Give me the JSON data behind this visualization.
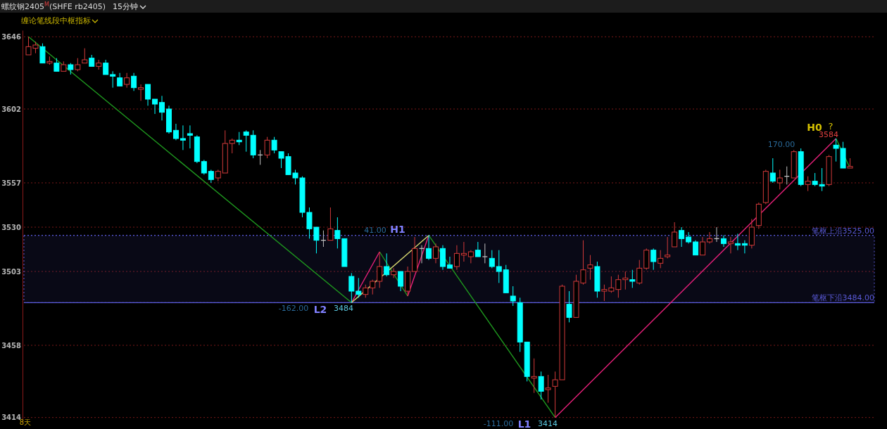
{
  "chart_data": {
    "type": "candlestick",
    "title": "螺纹钢2405$^{M}$(SHFE rb2405)",
    "subtitle": "缠论笔线段中枢指标",
    "annotations": [
      "15分钟",
      "41.00",
      "H1",
      "-162.00",
      "L2",
      "3484",
      "-111.00",
      "L1",
      "3414",
      "170.00",
      "H0",
      "?",
      "3584",
      "8天"
    ],
    "categories": [
      null,
      null,
      null,
      null,
      null,
      null,
      null,
      null,
      null,
      null,
      null,
      null,
      null,
      null,
      null,
      null,
      null,
      null,
      null,
      null,
      null,
      null,
      null,
      null,
      null,
      null,
      null,
      null,
      null,
      null,
      null,
      null,
      null,
      null,
      null,
      null,
      null,
      null,
      null,
      null,
      null,
      null,
      null,
      null,
      null,
      null,
      null,
      null,
      null,
      null,
      null,
      null,
      null,
      null,
      null,
      null,
      null,
      null,
      null,
      null,
      null,
      null,
      null,
      null,
      null,
      null,
      null,
      null,
      null,
      null,
      null,
      null,
      null,
      null,
      null,
      null,
      null,
      null,
      null,
      null,
      null,
      null,
      null,
      null,
      null,
      null,
      null,
      null,
      null,
      null,
      null,
      null,
      null,
      null,
      null,
      null,
      null,
      null,
      null,
      null,
      null,
      null,
      null,
      null,
      null,
      null,
      null,
      null,
      null,
      null,
      null,
      null,
      null,
      null,
      null,
      null,
      null,
      null
    ],
    "ohlc": [
      [
        3635,
        3646,
        3635,
        3640
      ],
      [
        3639,
        3643,
        3636,
        3641
      ],
      [
        3640,
        3642,
        3630,
        3630
      ],
      [
        3630,
        3634,
        3629,
        3631
      ],
      [
        3630,
        3633,
        3625,
        3625
      ],
      [
        3625,
        3631,
        3625,
        3629
      ],
      [
        3629,
        3630,
        3623,
        3626
      ],
      [
        3626,
        3633,
        3625,
        3629
      ],
      [
        3630,
        3639,
        3630,
        3632
      ],
      [
        3633,
        3635,
        3628,
        3628
      ],
      [
        3628,
        3632,
        3626,
        3630
      ],
      [
        3630,
        3632,
        3623,
        3623
      ],
      [
        3623,
        3625,
        3615,
        3622
      ],
      [
        3621,
        3624,
        3616,
        3616
      ],
      [
        3617,
        3624,
        3615,
        3621
      ],
      [
        3622,
        3624,
        3613,
        3615
      ],
      [
        3614,
        3617,
        3607,
        3615
      ],
      [
        3617,
        3617,
        3604,
        3608
      ],
      [
        3608,
        3608,
        3599,
        3605
      ],
      [
        3606,
        3610,
        3595,
        3600
      ],
      [
        3602,
        3604,
        3587,
        3588
      ],
      [
        3589,
        3593,
        3583,
        3584
      ],
      [
        3584,
        3592,
        3577,
        3583
      ],
      [
        3587,
        3592,
        3578,
        3586
      ],
      [
        3585,
        3586,
        3569,
        3570
      ],
      [
        3570,
        3571,
        3562,
        3563
      ],
      [
        3564,
        3565,
        3557,
        3559
      ],
      [
        3560,
        3565,
        3558,
        3564
      ],
      [
        3563,
        3589,
        3563,
        3581
      ],
      [
        3581,
        3584,
        3575,
        3583
      ],
      [
        3583,
        3588,
        3580,
        3582
      ],
      [
        3588,
        3589,
        3576,
        3586
      ],
      [
        3586,
        3589,
        3572,
        3574
      ],
      [
        3574,
        3577,
        3568,
        3574
      ],
      [
        3574,
        3585,
        3572,
        3583
      ],
      [
        3583,
        3585,
        3575,
        3577
      ],
      [
        3576,
        3576,
        3566,
        3572
      ],
      [
        3573,
        3575,
        3562,
        3562
      ],
      [
        3563,
        3565,
        3556,
        3560
      ],
      [
        3560,
        3561,
        3536,
        3539
      ],
      [
        3539,
        3542,
        3523,
        3529
      ],
      [
        3530,
        3530,
        3514,
        3522
      ],
      [
        3522,
        3528,
        3518,
        3522
      ],
      [
        3522,
        3542,
        3522,
        3529
      ],
      [
        3528,
        3536,
        3517,
        3523
      ],
      [
        3523,
        3523,
        3506,
        3506
      ],
      [
        3500,
        3502,
        3484,
        3491
      ],
      [
        3491,
        3499,
        3487,
        3489
      ],
      [
        3489,
        3495,
        3487,
        3493
      ],
      [
        3493,
        3498,
        3489,
        3497
      ],
      [
        3497,
        3515,
        3493,
        3506
      ],
      [
        3506,
        3514,
        3500,
        3501
      ],
      [
        3501,
        3505,
        3499,
        3503
      ],
      [
        3503,
        3503,
        3491,
        3494
      ],
      [
        3491,
        3506,
        3488,
        3503
      ],
      [
        3503,
        3524,
        3503,
        3517
      ],
      [
        3517,
        3519,
        3508,
        3517
      ],
      [
        3517,
        3525,
        3510,
        3511
      ],
      [
        3511,
        3520,
        3508,
        3518
      ],
      [
        3517,
        3519,
        3504,
        3506
      ],
      [
        3507,
        3512,
        3505,
        3505
      ],
      [
        3506,
        3519,
        3504,
        3514
      ],
      [
        3513,
        3521,
        3509,
        3514
      ],
      [
        3512,
        3516,
        3508,
        3515
      ],
      [
        3516,
        3521,
        3512,
        3512
      ],
      [
        3512,
        3520,
        3508,
        3512
      ],
      [
        3511,
        3516,
        3505,
        3506
      ],
      [
        3506,
        3516,
        3496,
        3503
      ],
      [
        3504,
        3507,
        3490,
        3490
      ],
      [
        3488,
        3494,
        3482,
        3485
      ],
      [
        3484,
        3487,
        3454,
        3460
      ],
      [
        3460,
        3460,
        3436,
        3439
      ],
      [
        3438,
        3450,
        3429,
        3439
      ],
      [
        3439,
        3442,
        3425,
        3430
      ],
      [
        3431,
        3440,
        3423,
        3432
      ],
      [
        3433,
        3442,
        3414,
        3437
      ],
      [
        3437,
        3495,
        3437,
        3494
      ],
      [
        3483,
        3491,
        3472,
        3475
      ],
      [
        3475,
        3501,
        3475,
        3497
      ],
      [
        3496,
        3522,
        3495,
        3504
      ],
      [
        3505,
        3513,
        3498,
        3507
      ],
      [
        3506,
        3509,
        3487,
        3491
      ],
      [
        3491,
        3495,
        3485,
        3492
      ],
      [
        3491,
        3500,
        3490,
        3493
      ],
      [
        3492,
        3501,
        3487,
        3498
      ],
      [
        3498,
        3503,
        3492,
        3499
      ],
      [
        3498,
        3504,
        3493,
        3497
      ],
      [
        3496,
        3510,
        3495,
        3505
      ],
      [
        3505,
        3517,
        3504,
        3516
      ],
      [
        3516,
        3517,
        3504,
        3509
      ],
      [
        3508,
        3516,
        3505,
        3511
      ],
      [
        3512,
        3524,
        3511,
        3513
      ],
      [
        3518,
        3533,
        3518,
        3527
      ],
      [
        3528,
        3530,
        3518,
        3523
      ],
      [
        3524,
        3527,
        3520,
        3521
      ],
      [
        3521,
        3522,
        3513,
        3513
      ],
      [
        3513,
        3524,
        3513,
        3521
      ],
      [
        3521,
        3527,
        3520,
        3523
      ],
      [
        3523,
        3530,
        3521,
        3523
      ],
      [
        3523,
        3525,
        3518,
        3520
      ],
      [
        3520,
        3524,
        3514,
        3521
      ],
      [
        3520,
        3526,
        3516,
        3519
      ],
      [
        3520,
        3522,
        3514,
        3519
      ],
      [
        3519,
        3535,
        3517,
        3530
      ],
      [
        3531,
        3545,
        3529,
        3544
      ],
      [
        3545,
        3565,
        3544,
        3564
      ],
      [
        3563,
        3572,
        3557,
        3558
      ],
      [
        3557,
        3565,
        3553,
        3560
      ],
      [
        3561,
        3567,
        3556,
        3561
      ],
      [
        3560,
        3577,
        3560,
        3576
      ],
      [
        3576,
        3578,
        3555,
        3556
      ],
      [
        3556,
        3561,
        3552,
        3558
      ],
      [
        3558,
        3563,
        3555,
        3556
      ],
      [
        3556,
        3566,
        3552,
        3555
      ],
      [
        3556,
        3574,
        3555,
        3573
      ],
      [
        3580,
        3584,
        3570,
        3578
      ],
      [
        3578,
        3582,
        3566,
        3566
      ],
      [
        3566,
        3572,
        3566,
        3567
      ]
    ],
    "colors": [
      "#d23a3a",
      "#d23a3a",
      "#00ffff",
      "#d23a3a",
      "#00ffff",
      "#d23a3a",
      "#00ffff",
      "#d23a3a",
      "#d23a3a",
      "#00ffff",
      "#d23a3a",
      "#00ffff",
      "#00ffff",
      "#00ffff",
      "#d23a3a",
      "#00ffff",
      "#d23a3a",
      "#00ffff",
      "#00ffff",
      "#00ffff",
      "#00ffff",
      "#00ffff",
      "#00ffff",
      "#00ffff",
      "#00ffff",
      "#00ffff",
      "#00ffff",
      "#d23a3a",
      "#d23a3a",
      "#d23a3a",
      "#00ffff",
      "#00ffff",
      "#00ffff",
      "#c0c0c0",
      "#d23a3a",
      "#00ffff",
      "#00ffff",
      "#00ffff",
      "#00ffff",
      "#00ffff",
      "#00ffff",
      "#00ffff",
      "#c0c0c0",
      "#d23a3a",
      "#00ffff",
      "#00ffff",
      "#00ffff",
      "#00ffff",
      "#d23a3a",
      "#d23a3a",
      "#d23a3a",
      "#00ffff",
      "#d23a3a",
      "#00ffff",
      "#d23a3a",
      "#d23a3a",
      "#c0c0c0",
      "#00ffff",
      "#d23a3a",
      "#00ffff",
      "#00ffff",
      "#d23a3a",
      "#d23a3a",
      "#d23a3a",
      "#00ffff",
      "#c0c0c0",
      "#00ffff",
      "#00ffff",
      "#00ffff",
      "#00ffff",
      "#00ffff",
      "#00ffff",
      "#d23a3a",
      "#00ffff",
      "#d23a3a",
      "#d23a3a",
      "#d23a3a",
      "#00ffff",
      "#d23a3a",
      "#d23a3a",
      "#d23a3a",
      "#00ffff",
      "#d23a3a",
      "#d23a3a",
      "#d23a3a",
      "#d23a3a",
      "#00ffff",
      "#d23a3a",
      "#d23a3a",
      "#00ffff",
      "#d23a3a",
      "#d23a3a",
      "#d23a3a",
      "#00ffff",
      "#00ffff",
      "#00ffff",
      "#d23a3a",
      "#d23a3a",
      "#c0c0c0",
      "#00ffff",
      "#d23a3a",
      "#00ffff",
      "#00ffff",
      "#d23a3a",
      "#d23a3a",
      "#d23a3a",
      "#00ffff",
      "#d23a3a",
      "#c0c0c0",
      "#d23a3a",
      "#00ffff",
      "#d23a3a",
      "#00ffff",
      "#00ffff",
      "#d23a3a",
      "#00ffff",
      "#00ffff",
      "#d23a3a"
    ],
    "series": [
      {
        "type": "line",
        "color": "#1f9a1f",
        "values": [
          3646,
          null,
          null,
          null,
          null,
          null,
          null,
          null,
          null,
          null,
          null,
          null,
          null,
          null,
          null,
          null,
          null,
          null,
          null,
          null,
          null,
          null,
          null,
          null,
          null,
          null,
          null,
          null,
          null,
          null,
          null,
          null,
          null,
          null,
          null,
          null,
          null,
          null,
          null,
          null,
          null,
          null,
          null,
          null,
          null,
          null,
          3484,
          null,
          null,
          null,
          null,
          null,
          null,
          null,
          null,
          null,
          null,
          null,
          null,
          null,
          null,
          null,
          null,
          null,
          null,
          null,
          null,
          null,
          null,
          null,
          null,
          null,
          null,
          null,
          null,
          null,
          null,
          null,
          null,
          null,
          null,
          null,
          null,
          null,
          null,
          null,
          null,
          null,
          null,
          null,
          null,
          null,
          null,
          null,
          null,
          null,
          null,
          null,
          null,
          null,
          null,
          null,
          null,
          null,
          null,
          null,
          null,
          null,
          null,
          null,
          null,
          null,
          null,
          null,
          null,
          null,
          null,
          null
        ]
      },
      {
        "type": "line",
        "color": "#1f9a1f",
        "values": [
          null,
          null,
          null,
          null,
          null,
          null,
          null,
          null,
          null,
          null,
          null,
          null,
          null,
          null,
          null,
          null,
          null,
          null,
          null,
          null,
          null,
          null,
          null,
          null,
          null,
          null,
          null,
          null,
          null,
          null,
          null,
          null,
          null,
          null,
          null,
          null,
          null,
          null,
          null,
          null,
          null,
          null,
          null,
          null,
          null,
          null,
          null,
          null,
          null,
          null,
          3515,
          null,
          null,
          null,
          3488,
          null,
          null,
          null,
          null,
          null,
          null,
          null,
          null,
          null,
          null,
          null,
          null,
          null,
          null,
          null,
          null,
          null,
          null,
          null,
          null,
          null,
          null,
          null,
          null,
          null,
          null,
          null,
          null,
          null,
          null,
          null,
          null,
          null,
          null,
          null,
          null,
          null,
          null,
          null,
          null,
          null,
          null,
          null,
          null,
          null,
          null,
          null,
          null,
          null,
          null,
          null,
          null,
          null,
          null,
          null,
          null,
          null,
          null,
          null,
          null,
          null,
          null,
          null
        ]
      },
      {
        "type": "line",
        "color": "#1f9a1f",
        "values": [
          null,
          null,
          null,
          null,
          null,
          null,
          null,
          null,
          null,
          null,
          null,
          null,
          null,
          null,
          null,
          null,
          null,
          null,
          null,
          null,
          null,
          null,
          null,
          null,
          null,
          null,
          null,
          null,
          null,
          null,
          null,
          null,
          null,
          null,
          null,
          null,
          null,
          null,
          null,
          null,
          null,
          null,
          null,
          null,
          null,
          null,
          null,
          null,
          null,
          null,
          null,
          null,
          null,
          null,
          null,
          null,
          null,
          3525,
          null,
          null,
          null,
          null,
          null,
          null,
          null,
          null,
          null,
          null,
          null,
          null,
          null,
          null,
          null,
          null,
          null,
          3414,
          null,
          null,
          null,
          null,
          null,
          null,
          null,
          null,
          null,
          null,
          null,
          null,
          null,
          null,
          null,
          null,
          null,
          null,
          null,
          null,
          null,
          null,
          null,
          null,
          null,
          null,
          null,
          null,
          null,
          null,
          null,
          null,
          null,
          null,
          null,
          null,
          null,
          null,
          null,
          null,
          null,
          null
        ]
      },
      {
        "type": "line",
        "color": "#1f9a1f",
        "values": [
          null,
          null,
          null,
          null,
          null,
          null,
          null,
          null,
          null,
          null,
          null,
          null,
          null,
          null,
          null,
          null,
          null,
          null,
          null,
          null,
          null,
          null,
          null,
          null,
          null,
          null,
          null,
          null,
          null,
          null,
          null,
          null,
          null,
          null,
          null,
          null,
          null,
          null,
          null,
          null,
          null,
          null,
          null,
          null,
          null,
          null,
          null,
          null,
          null,
          null,
          null,
          null,
          null,
          null,
          null,
          null,
          null,
          null,
          null,
          null,
          null,
          null,
          null,
          null,
          null,
          null,
          null,
          null,
          null,
          null,
          null,
          null,
          null,
          null,
          null,
          null,
          null,
          null,
          null,
          null,
          null,
          null,
          null,
          null,
          null,
          null,
          null,
          null,
          null,
          null,
          null,
          null,
          null,
          null,
          null,
          null,
          null,
          null,
          null,
          null,
          null,
          null,
          null,
          null,
          null,
          null,
          null,
          null,
          null,
          null,
          null,
          null,
          null,
          null,
          null,
          3584,
          null,
          3566
        ]
      },
      {
        "type": "line",
        "color": "#e8207a",
        "values": [
          null,
          null,
          null,
          null,
          null,
          null,
          null,
          null,
          null,
          null,
          null,
          null,
          null,
          null,
          null,
          null,
          null,
          null,
          null,
          null,
          null,
          null,
          null,
          null,
          null,
          null,
          null,
          null,
          null,
          null,
          null,
          null,
          null,
          null,
          null,
          null,
          null,
          null,
          null,
          null,
          null,
          null,
          null,
          null,
          null,
          null,
          3484,
          null,
          null,
          null,
          3515,
          null,
          null,
          null,
          null,
          null,
          null,
          null,
          null,
          null,
          null,
          null,
          null,
          null,
          null,
          null,
          null,
          null,
          null,
          null,
          null,
          null,
          null,
          null,
          null,
          null,
          null,
          null,
          null,
          null,
          null,
          null,
          null,
          null,
          null,
          null,
          null,
          null,
          null,
          null,
          null,
          null,
          null,
          null,
          null,
          null,
          null,
          null,
          null,
          null,
          null,
          null,
          null,
          null,
          null,
          null,
          null,
          null,
          null,
          null,
          null,
          null,
          null,
          null,
          null,
          null,
          null,
          null
        ]
      },
      {
        "type": "line",
        "color": "#e8207a",
        "values": [
          null,
          null,
          null,
          null,
          null,
          null,
          null,
          null,
          null,
          null,
          null,
          null,
          null,
          null,
          null,
          null,
          null,
          null,
          null,
          null,
          null,
          null,
          null,
          null,
          null,
          null,
          null,
          null,
          null,
          null,
          null,
          null,
          null,
          null,
          null,
          null,
          null,
          null,
          null,
          null,
          null,
          null,
          null,
          null,
          null,
          null,
          null,
          null,
          null,
          null,
          null,
          null,
          null,
          null,
          3488,
          null,
          null,
          3525,
          null,
          null,
          null,
          null,
          null,
          null,
          null,
          null,
          null,
          null,
          null,
          null,
          null,
          null,
          null,
          null,
          null,
          null,
          null,
          null,
          null,
          null,
          null,
          null,
          null,
          null,
          null,
          null,
          null,
          null,
          null,
          null,
          null,
          null,
          null,
          null,
          null,
          null,
          null,
          null,
          null,
          null,
          null,
          null,
          null,
          null,
          null,
          null,
          null,
          null,
          null,
          null,
          null,
          null,
          null,
          null,
          null,
          null,
          null,
          null
        ]
      },
      {
        "type": "line",
        "color": "#e8207a",
        "values": [
          null,
          null,
          null,
          null,
          null,
          null,
          null,
          null,
          null,
          null,
          null,
          null,
          null,
          null,
          null,
          null,
          null,
          null,
          null,
          null,
          null,
          null,
          null,
          null,
          null,
          null,
          null,
          null,
          null,
          null,
          null,
          null,
          null,
          null,
          null,
          null,
          null,
          null,
          null,
          null,
          null,
          null,
          null,
          null,
          null,
          null,
          null,
          null,
          null,
          null,
          null,
          null,
          null,
          null,
          null,
          null,
          null,
          null,
          null,
          null,
          null,
          null,
          null,
          null,
          null,
          null,
          null,
          null,
          null,
          null,
          null,
          null,
          null,
          null,
          null,
          3414,
          null,
          null,
          null,
          null,
          null,
          null,
          null,
          null,
          null,
          null,
          null,
          null,
          null,
          null,
          null,
          null,
          null,
          null,
          null,
          null,
          null,
          null,
          null,
          null,
          null,
          null,
          null,
          null,
          null,
          null,
          null,
          null,
          null,
          null,
          null,
          null,
          null,
          null,
          null,
          3584,
          null,
          null
        ]
      },
      {
        "type": "line",
        "color": "#d8d870",
        "values": [
          null,
          null,
          null,
          null,
          null,
          null,
          null,
          null,
          null,
          null,
          null,
          null,
          null,
          null,
          null,
          null,
          null,
          null,
          null,
          null,
          null,
          null,
          null,
          null,
          null,
          null,
          null,
          null,
          null,
          null,
          null,
          null,
          null,
          null,
          null,
          null,
          null,
          null,
          null,
          null,
          null,
          null,
          null,
          null,
          null,
          null,
          3484,
          null,
          null,
          null,
          null,
          null,
          null,
          null,
          null,
          null,
          null,
          3525,
          null,
          null,
          null,
          null,
          null,
          null,
          null,
          null,
          null,
          null,
          null,
          null,
          null,
          null,
          null,
          null,
          null,
          null,
          null,
          null,
          null,
          null,
          null,
          null,
          null,
          null,
          null,
          null,
          null,
          null,
          null,
          null,
          null,
          null,
          null,
          null,
          null,
          null,
          null,
          null,
          null,
          null,
          null,
          null,
          null,
          null,
          null,
          null,
          null,
          null,
          null,
          null,
          null,
          null,
          null,
          null,
          null,
          null,
          null,
          null
        ]
      }
    ],
    "ylim": [
      3410,
      3650
    ],
    "yticks": [
      3414,
      3458,
      3503,
      3530,
      3557,
      3602,
      3646
    ],
    "grid": "y",
    "tick_labels": "y",
    "ref_lines": [
      {
        "axis": "y",
        "value": 3525,
        "label": "笔枢上沿3525.00",
        "color": "#5a5ad8",
        "line_style": "dotted"
      },
      {
        "axis": "y",
        "value": 3484,
        "label": "笔枢下沿3484.00",
        "color": "#5a5ad8",
        "line_style": "solid"
      }
    ],
    "bands": [
      {
        "axis": "y",
        "from": 3484,
        "to": 3525,
        "color": "#5a5ad8"
      }
    ]
  }
}
